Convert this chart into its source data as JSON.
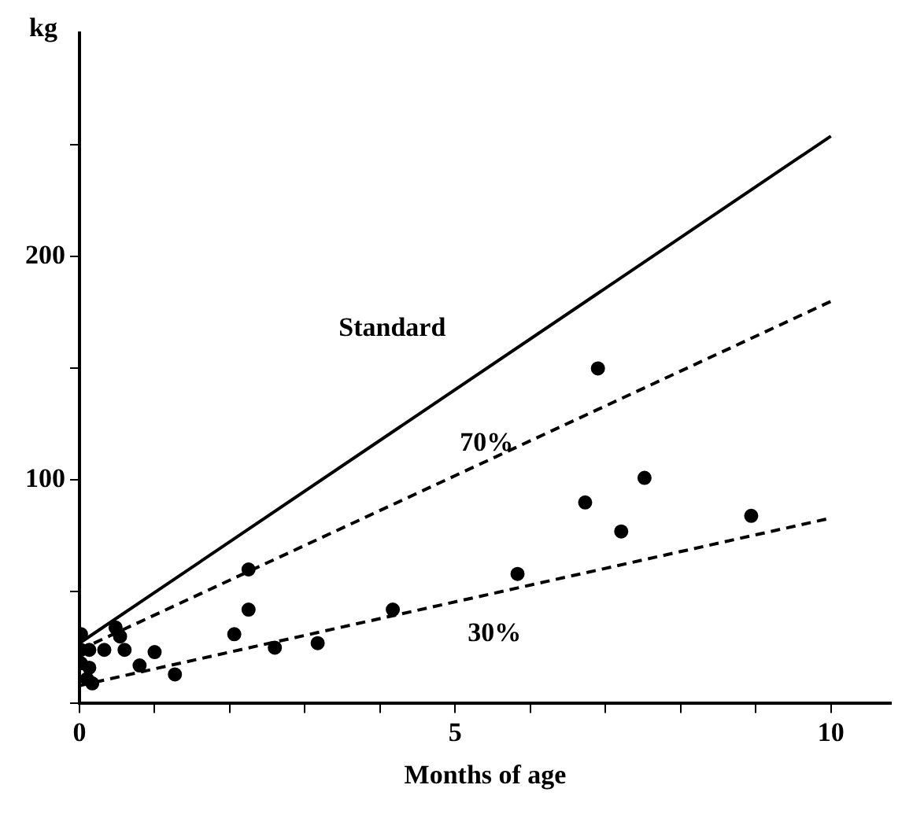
{
  "chart_data": {
    "type": "scatter",
    "xlabel": "Months of age",
    "ylabel": "kg",
    "xlim": [
      0,
      10.8
    ],
    "ylim": [
      0,
      300
    ],
    "xticks": [
      0,
      {
        "value": 1,
        "label": null
      },
      {
        "value": 2,
        "label": null
      },
      {
        "value": 3,
        "label": null
      },
      {
        "value": 4,
        "label": null
      },
      5,
      {
        "value": 6,
        "label": null
      },
      {
        "value": 7,
        "label": null
      },
      {
        "value": 8,
        "label": null
      },
      {
        "value": 9,
        "label": null
      },
      10
    ],
    "yticks": [
      {
        "value": 0,
        "label": null
      },
      {
        "value": 50,
        "label": null
      },
      100,
      {
        "value": 150,
        "label": null
      },
      200,
      {
        "value": 250,
        "label": null
      }
    ],
    "grid": false,
    "legend": false,
    "series": [
      {
        "color": "#000000",
        "marker": "circle",
        "x": [
          0.02,
          0.02,
          0.13,
          0.02,
          0.13,
          0.1,
          0.17,
          0.33,
          0.48,
          0.54,
          0.6,
          0.8,
          1.0,
          1.27,
          2.06,
          2.25,
          2.25,
          2.6,
          3.17,
          4.17,
          5.83,
          6.9,
          6.73,
          7.21,
          7.52,
          8.94
        ],
        "values": [
          31,
          24,
          24,
          18,
          16,
          11,
          9,
          24,
          34,
          30,
          24,
          17,
          23,
          13,
          31,
          60,
          42,
          25,
          27,
          42,
          58,
          150,
          90,
          77,
          101,
          84
        ]
      },
      {
        "type": "line",
        "name": "Standard",
        "color": "#000000",
        "line_style": "solid",
        "marker": "none",
        "x": [
          0,
          10
        ],
        "values": [
          27,
          254
        ]
      },
      {
        "type": "line",
        "name": "70%",
        "color": "#000000",
        "line_style": "dashed",
        "marker": "none",
        "x": [
          0,
          10
        ],
        "values": [
          24,
          180
        ]
      },
      {
        "type": "line",
        "name": "30%",
        "color": "#000000",
        "line_style": "dashed",
        "marker": "none",
        "x": [
          0,
          10
        ],
        "values": [
          8,
          83
        ]
      }
    ]
  }
}
